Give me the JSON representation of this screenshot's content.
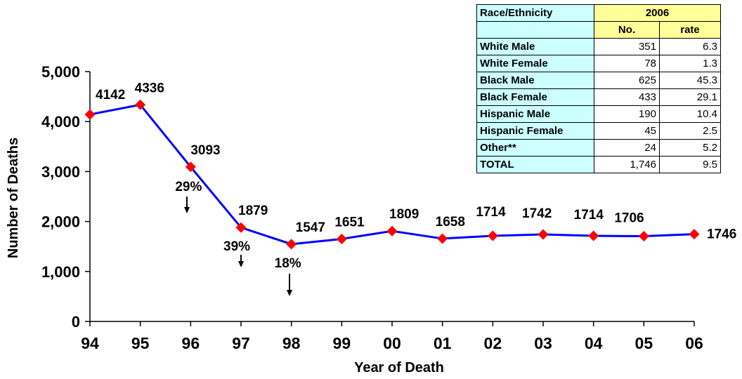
{
  "chart_data": {
    "type": "line",
    "xlabel": "Year of Death",
    "ylabel": "Number of Deaths",
    "ylim": [
      0,
      5000
    ],
    "yticks": [
      "0",
      "1,000",
      "2,000",
      "3,000",
      "4,000",
      "5,000"
    ],
    "ytick_values": [
      0,
      1000,
      2000,
      3000,
      4000,
      5000
    ],
    "categories": [
      "94",
      "95",
      "96",
      "97",
      "98",
      "99",
      "00",
      "01",
      "02",
      "03",
      "04",
      "05",
      "06"
    ],
    "values": [
      4142,
      4336,
      3093,
      1879,
      1547,
      1651,
      1809,
      1658,
      1714,
      1742,
      1714,
      1706,
      1746
    ],
    "line_color": "#0000ff",
    "marker_color": "#ff0000",
    "marker": "diamond",
    "annotations": [
      {
        "text": "29%",
        "x": "96",
        "arrow": "down"
      },
      {
        "text": "39%",
        "x": "97",
        "arrow": "down"
      },
      {
        "text": "18%",
        "x": "98",
        "arrow": "down"
      }
    ],
    "grid": false
  },
  "table": {
    "header_label": "Race/Ethnicity",
    "year": "2006",
    "col_no": "No.",
    "col_rate": "rate",
    "rows": [
      {
        "label": "White Male",
        "no": "351",
        "rate": "6.3"
      },
      {
        "label": "White Female",
        "no": "78",
        "rate": "1.3"
      },
      {
        "label": "Black Male",
        "no": "625",
        "rate": "45.3"
      },
      {
        "label": "Black Female",
        "no": "433",
        "rate": "29.1"
      },
      {
        "label": "Hispanic Male",
        "no": "190",
        "rate": "10.4"
      },
      {
        "label": "Hispanic Female",
        "no": "45",
        "rate": "2.5"
      },
      {
        "label": "Other**",
        "no": "24",
        "rate": "5.2"
      },
      {
        "label": "TOTAL",
        "no": "1,746",
        "rate": "9.5"
      }
    ],
    "label_bg": "#ccffff",
    "header_bg": "#ffff99"
  }
}
